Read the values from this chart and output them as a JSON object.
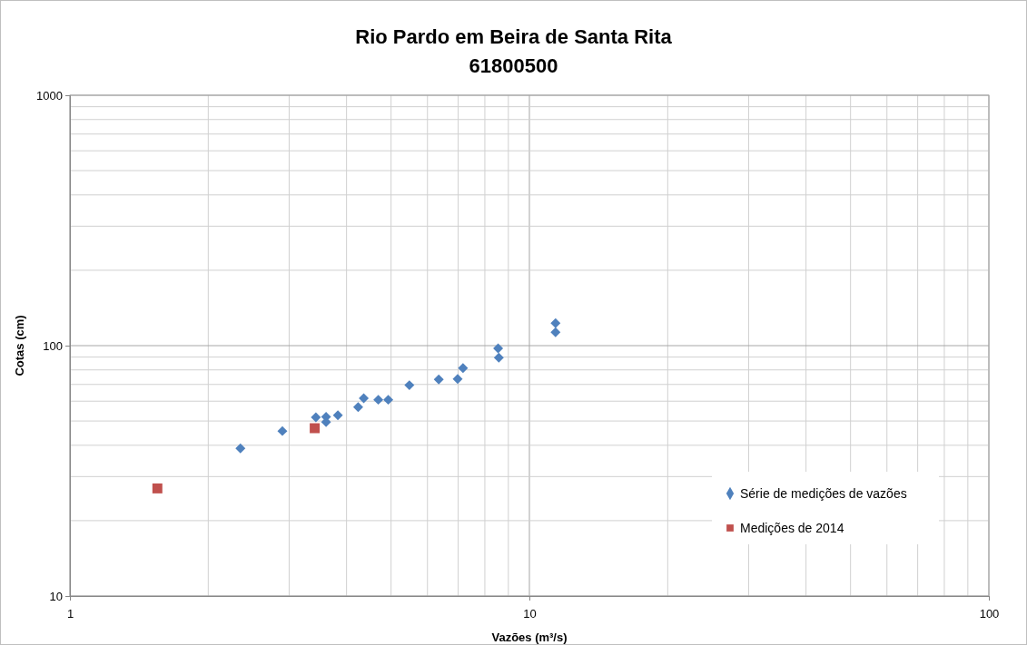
{
  "chart_data": {
    "type": "scatter",
    "title": "Rio Pardo em Beira de Santa Rita\n61800500",
    "xlabel": "Vazões (m³/s)",
    "ylabel": "Cotas (cm)",
    "log": "xy",
    "xlim": [
      1,
      100
    ],
    "xticks": [
      1,
      10,
      100
    ],
    "ylim": [
      10,
      1000
    ],
    "yticks": [
      10,
      100,
      1000
    ],
    "grid": true,
    "legend": "bottom right",
    "series": [
      {
        "name": "Série de medições de vazões",
        "color": "#4f81bd",
        "marker": "diamond",
        "x": [
          2.35,
          2.9,
          3.43,
          3.61,
          3.61,
          3.83,
          4.24,
          4.36,
          4.69,
          4.93,
          5.48,
          6.35,
          6.98,
          7.17,
          8.55,
          8.58,
          11.4,
          11.4
        ],
        "values": [
          38.9,
          45.6,
          51.7,
          52.0,
          49.5,
          52.7,
          56.8,
          61.6,
          60.8,
          60.8,
          69.5,
          73.3,
          73.6,
          81.4,
          97.5,
          89.5,
          123,
          113
        ]
      },
      {
        "name": "Medições de 2014",
        "color": "#c0504d",
        "marker": "square",
        "x": [
          1.55,
          3.41
        ],
        "values": [
          26.9,
          46.8
        ]
      }
    ]
  }
}
